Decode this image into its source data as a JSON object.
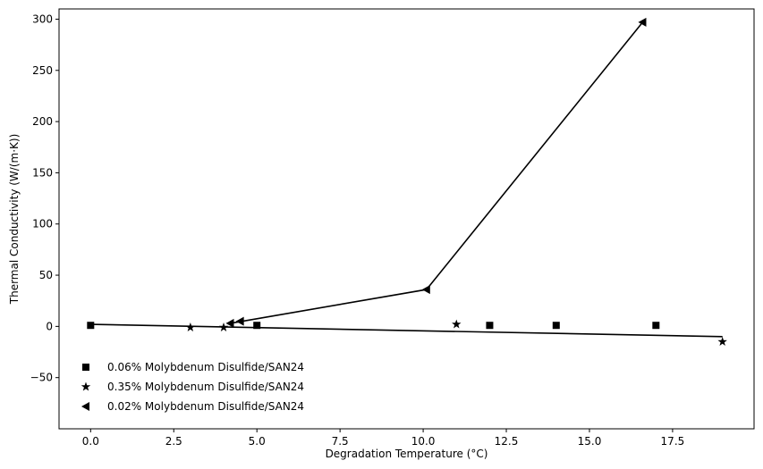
{
  "chart_data": {
    "type": "scatter",
    "title": "",
    "xlabel": "Degradation Temperature (°C)",
    "ylabel": "Thermal Conductivity (W/(m·K))",
    "xlim": [
      -0.95,
      19.95
    ],
    "ylim": [
      -100,
      310
    ],
    "xticks": [
      0.0,
      2.5,
      5.0,
      7.5,
      10.0,
      12.5,
      15.0,
      17.5
    ],
    "xtick_labels": [
      "0.0",
      "2.5",
      "5.0",
      "7.5",
      "10.0",
      "12.5",
      "15.0",
      "17.5"
    ],
    "yticks": [
      -50,
      0,
      50,
      100,
      150,
      200,
      250,
      300
    ],
    "ytick_labels": [
      "−50",
      "0",
      "50",
      "100",
      "150",
      "200",
      "250",
      "300"
    ],
    "grid": false,
    "legend_position": "lower-left",
    "series": [
      {
        "name": "0.06% Molybdenum Disulfide/SAN24",
        "marker": "square",
        "color": "#000000",
        "x": [
          0,
          5,
          12,
          14,
          17
        ],
        "y": [
          1,
          1,
          1,
          1,
          1
        ]
      },
      {
        "name": "0.35% Molybdenum Disulfide/SAN24",
        "marker": "star",
        "color": "#000000",
        "x": [
          3,
          4,
          11,
          19
        ],
        "y": [
          -1,
          -1,
          2,
          -15
        ]
      },
      {
        "name": "0.02% Molybdenum Disulfide/SAN24",
        "marker": "triangle-left",
        "color": "#000000",
        "x": [
          4.2,
          4.5,
          10.1,
          16.6
        ],
        "y": [
          3,
          5,
          36,
          297
        ]
      }
    ],
    "lines": [
      {
        "x": [
          0,
          19
        ],
        "y": [
          2,
          -10
        ]
      },
      {
        "x": [
          4.2,
          10.1,
          16.6
        ],
        "y": [
          3,
          36,
          297
        ]
      }
    ]
  }
}
